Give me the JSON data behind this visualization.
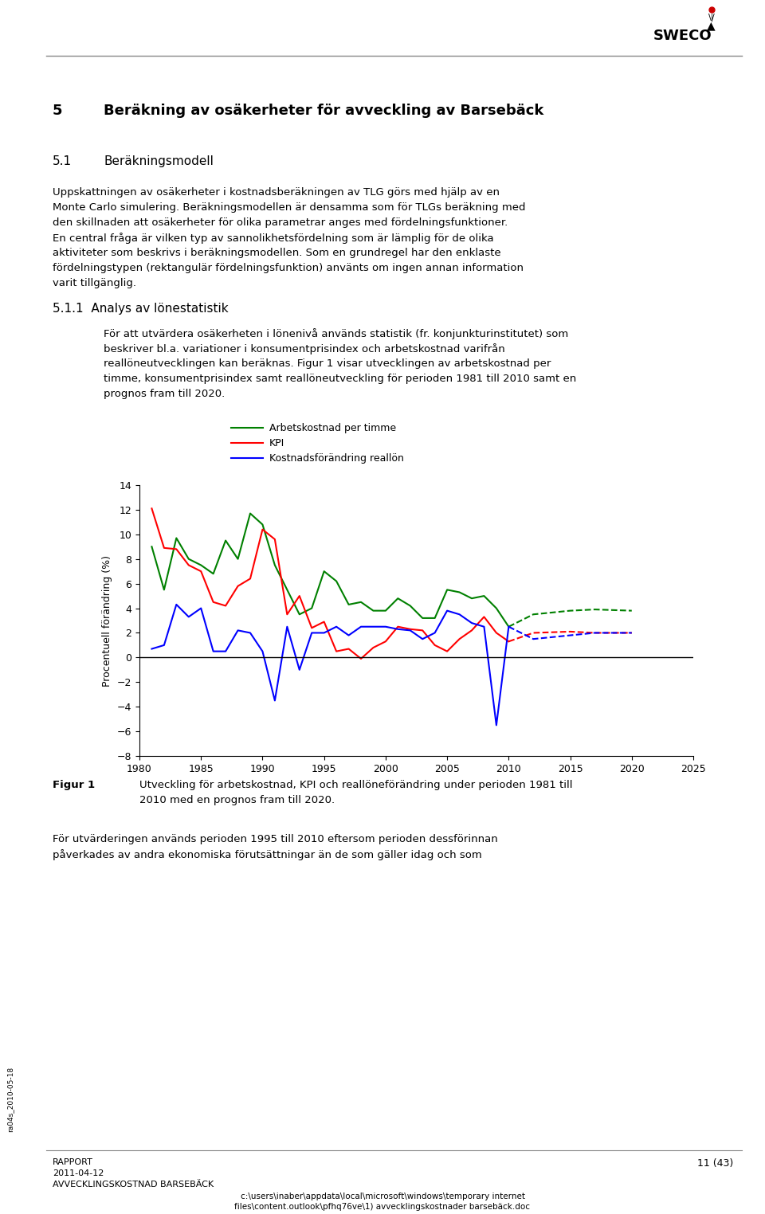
{
  "page_title_num": "5",
  "page_title_text": "Beräkning av osäkerheter för avveckling av Barsebäck",
  "section_51_num": "5.1",
  "section_51_text": "Beräkningsmodell",
  "para_51_lines": [
    "Uppskattningen av osäkerheter i kostnadsberäkningen av TLG görs med hjälp av en",
    "Monte Carlo simulering. Beräkningsmodellen är densamma som för TLGs beräkning med",
    "den skillnaden att osäkerheter för olika parametrar anges med fördelningsfunktioner.",
    "En central fråga är vilken typ av sannolikhetsfördelning som är lämplig för de olika",
    "aktiviteter som beskrivs i beräkningsmodellen. Som en grundregel har den enklaste",
    "fördelningstypen (rektangulär fördelningsfunktion) använts om ingen annan information",
    "varit tillgänglig."
  ],
  "section_511_text": "5.1.1  Analys av lönestatistik",
  "para_511_lines": [
    "För att utvärdera osäkerheten i lönenivå används statistik (fr. konjunkturinstitutet) som",
    "beskriver bl.a. variationer i konsumentprisindex och arbetskostnad varifrån",
    "reallöneutvecklingen kan beräknas. Figur 1 visar utvecklingen av arbetskostnad per",
    "timme, konsumentprisindex samt reallöneutveckling för perioden 1981 till 2010 samt en",
    "prognos fram till 2020."
  ],
  "fig_caption_bold": "Figur 1",
  "fig_caption_text": "Utveckling för arbetskostnad, KPI och reallöneförändring under perioden 1981 till",
  "fig_caption_text2": "2010 med en prognos fram till 2020.",
  "para_bottom_lines": [
    "För utvärderingen används perioden 1995 till 2010 eftersom perioden dessförinnan",
    "påverkades av andra ekonomiska förutsättningar än de som gäller idag och som"
  ],
  "footer_left_top": "RAPPORT",
  "footer_left_mid": "2011-04-12",
  "footer_left_bot": "AVVECKLINGSKOSTNAD BARSEBÄCK",
  "footer_right": "11 (43)",
  "footer_path1": "c:\\users\\inaber\\appdata\\local\\microsoft\\windows\\temporary internet",
  "footer_path2": "files\\content.outlook\\pfhq76ve\\1) avvecklingskostnader barsebäck.doc",
  "sidebar_text": "ra04s_2010-05-18",
  "chart": {
    "ylabel": "Procentuell förändring (%)",
    "xlim": [
      1980,
      2025
    ],
    "ylim": [
      -8,
      14
    ],
    "yticks": [
      -8,
      -6,
      -4,
      -2,
      0,
      2,
      4,
      6,
      8,
      10,
      12,
      14
    ],
    "xticks": [
      1980,
      1985,
      1990,
      1995,
      2000,
      2005,
      2010,
      2015,
      2020,
      2025
    ],
    "legend": [
      "Arbetskostnad per timme",
      "KPI",
      "Kostnadsförändring reallön"
    ],
    "legend_colors": [
      "#008000",
      "#FF0000",
      "#0000FF"
    ],
    "green_solid_x": [
      1981,
      1982,
      1983,
      1984,
      1985,
      1986,
      1987,
      1988,
      1989,
      1990,
      1991,
      1992,
      1993,
      1994,
      1995,
      1996,
      1997,
      1998,
      1999,
      2000,
      2001,
      2002,
      2003,
      2004,
      2005,
      2006,
      2007,
      2008,
      2009,
      2010
    ],
    "green_solid_y": [
      9.0,
      5.5,
      9.7,
      8.0,
      7.5,
      6.8,
      9.5,
      8.0,
      11.7,
      10.8,
      7.5,
      5.5,
      3.5,
      4.0,
      7.0,
      6.2,
      4.3,
      4.5,
      3.8,
      3.8,
      4.8,
      4.2,
      3.2,
      3.2,
      5.5,
      5.3,
      4.8,
      5.0,
      4.0,
      2.5
    ],
    "green_dashed_x": [
      2010,
      2012,
      2015,
      2017,
      2020
    ],
    "green_dashed_y": [
      2.5,
      3.5,
      3.8,
      3.9,
      3.8
    ],
    "red_solid_x": [
      1981,
      1982,
      1983,
      1984,
      1985,
      1986,
      1987,
      1988,
      1989,
      1990,
      1991,
      1992,
      1993,
      1994,
      1995,
      1996,
      1997,
      1998,
      1999,
      2000,
      2001,
      2002,
      2003,
      2004,
      2005,
      2006,
      2007,
      2008,
      2009,
      2010
    ],
    "red_solid_y": [
      12.1,
      8.9,
      8.8,
      7.5,
      7.0,
      4.5,
      4.2,
      5.8,
      6.4,
      10.4,
      9.6,
      3.5,
      5.0,
      2.4,
      2.9,
      0.5,
      0.7,
      -0.1,
      0.8,
      1.3,
      2.5,
      2.3,
      2.2,
      1.0,
      0.5,
      1.5,
      2.2,
      3.3,
      2.0,
      1.3
    ],
    "red_dashed_x": [
      2010,
      2012,
      2015,
      2017,
      2020
    ],
    "red_dashed_y": [
      1.3,
      2.0,
      2.1,
      2.0,
      2.0
    ],
    "blue_solid_x": [
      1981,
      1982,
      1983,
      1984,
      1985,
      1986,
      1987,
      1988,
      1989,
      1990,
      1991,
      1992,
      1993,
      1994,
      1995,
      1996,
      1997,
      1998,
      1999,
      2000,
      2001,
      2002,
      2003,
      2004,
      2005,
      2006,
      2007,
      2008,
      2009,
      2010
    ],
    "blue_solid_y": [
      0.7,
      1.0,
      4.3,
      3.3,
      4.0,
      0.5,
      0.5,
      2.2,
      2.0,
      0.5,
      -3.5,
      2.5,
      -1.0,
      2.0,
      2.0,
      2.5,
      1.8,
      2.5,
      2.5,
      2.5,
      2.3,
      2.2,
      1.5,
      2.0,
      3.8,
      3.5,
      2.8,
      2.5,
      -5.5,
      2.5
    ],
    "blue_dashed_x": [
      2010,
      2012,
      2015,
      2017,
      2020
    ],
    "blue_dashed_y": [
      2.5,
      1.5,
      1.8,
      2.0,
      2.0
    ]
  }
}
